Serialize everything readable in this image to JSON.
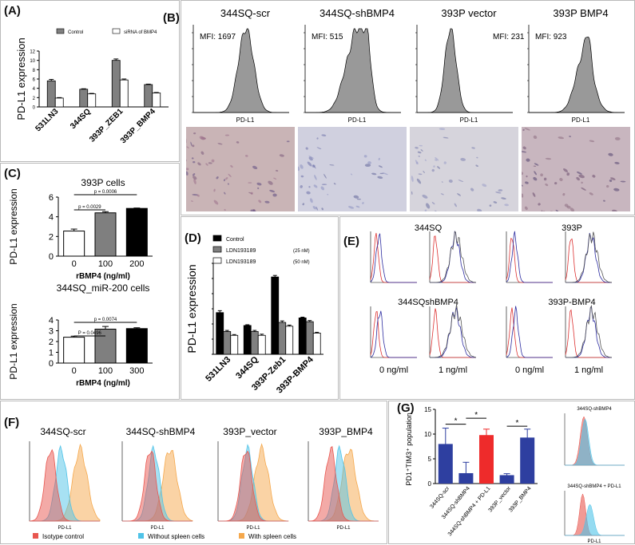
{
  "panels": {
    "A": {
      "label": "(A)",
      "ylabel": "PD-L1 expression",
      "chart_data": {
        "type": "bar",
        "categories": [
          "531LN3",
          "344SQ",
          "393P_ZEB1",
          "393P_BMP4"
        ],
        "series": [
          {
            "name": "Control",
            "values": [
              5.6,
              3.8,
              10.0,
              4.8
            ],
            "errors": [
              0.3,
              0.1,
              0.3,
              0.1
            ],
            "color": "#808080"
          },
          {
            "name": "siRNA of BMP4",
            "values": [
              1.9,
              2.8,
              5.8,
              3.0
            ],
            "errors": [
              0.1,
              0.1,
              0.2,
              0.1
            ],
            "color": "#ffffff"
          }
        ],
        "ylim": [
          0,
          12
        ],
        "yticks": [
          "0",
          "2",
          "4",
          "6",
          "8",
          "10",
          "12"
        ]
      }
    },
    "B": {
      "label": "(B)",
      "histograms": [
        {
          "title": "344SQ-scr",
          "mfi": "MFI: 1697",
          "xlabel": "PD-L1"
        },
        {
          "title": "344SQ-shBMP4",
          "mfi": "MFI: 515",
          "xlabel": "PD-L1"
        },
        {
          "title": "393P  vector",
          "mfi": "MFI: 231",
          "xlabel": "PD-L1"
        },
        {
          "title": "393P  BMP4",
          "mfi": "MFI: 923",
          "xlabel": "PD-L1"
        }
      ]
    },
    "C": {
      "label": "(C)",
      "charts": [
        {
          "title": "393P cells",
          "ylabel": "PD-L1 expression",
          "xlabel": "rBMP4 (ng/ml)",
          "annotations": [
            "p = 0.0006",
            "p = 0.0029"
          ],
          "chart_data": {
            "type": "bar",
            "categories": [
              "0",
              "100",
              "200"
            ],
            "values": [
              2.55,
              4.4,
              4.85
            ],
            "errors": [
              0.2,
              0.12,
              0.04
            ],
            "colors": [
              "#ffffff",
              "#7f7f7f",
              "#000000"
            ],
            "ylim": [
              0,
              6
            ],
            "yticks": [
              "0",
              "2",
              "4",
              "6"
            ]
          }
        },
        {
          "title": "344SQ_miR-200 cells",
          "ylabel": "PD-L1 expression",
          "xlabel": "rBMP4 (ng/ml)",
          "annotations": [
            "p = 0.0074",
            "P = 0.0496"
          ],
          "chart_data": {
            "type": "bar",
            "categories": [
              "0",
              "100",
              "300"
            ],
            "values": [
              2.4,
              3.15,
              3.2
            ],
            "errors": [
              0.1,
              0.25,
              0.08
            ],
            "colors": [
              "#ffffff",
              "#7f7f7f",
              "#000000"
            ],
            "ylim": [
              0,
              4
            ],
            "yticks": [
              "0",
              "1",
              "2",
              "3",
              "4"
            ]
          }
        }
      ]
    },
    "D": {
      "label": "(D)",
      "ylabel": "PD-L1 expression",
      "chart_data": {
        "type": "bar",
        "categories": [
          "531LN3",
          "344SQ",
          "393P-Zeb1",
          "393P-BMP4"
        ],
        "series": [
          {
            "name": "Control",
            "values": [
              5.5,
              3.8,
              10.2,
              4.8
            ],
            "errors": [
              0.25,
              0.1,
              0.2,
              0.1
            ],
            "color": "#000000"
          },
          {
            "name": "LDN193189",
            "values": [
              3.0,
              3.0,
              4.2,
              4.3
            ],
            "errors": [
              0.15,
              0.15,
              0.2,
              0.15
            ],
            "color": "#808080"
          },
          {
            "name": "LDN193189",
            "values": [
              2.5,
              2.5,
              3.7,
              2.8
            ],
            "errors": [
              0.1,
              0.15,
              0.15,
              0.1
            ],
            "color": "#ffffff"
          }
        ],
        "legend_conc": [
          "(25 nM)",
          "(50 nM)"
        ],
        "ylim": [
          0,
          12
        ]
      }
    },
    "E": {
      "label": "(E)",
      "titles": [
        "344SQ",
        "393P",
        "344SQshBMP4",
        "393P-BMP4"
      ],
      "xlabels": [
        "0 ng/ml",
        "1 ng/ml",
        "0 ng/ml",
        "1 ng/ml"
      ]
    },
    "F": {
      "label": "(F)",
      "titles": [
        "344SQ-scr",
        "344SQ-shBMP4",
        "393P_vector",
        "393P_BMP4"
      ],
      "xlabel": "PD-L1",
      "legend": [
        {
          "name": "Isotype control",
          "color": "#e8564f"
        },
        {
          "name": "Without spleen cells",
          "color": "#4fc3e8"
        },
        {
          "name": "With spleen cells",
          "color": "#f5a84c"
        }
      ]
    },
    "G": {
      "label": "(G)",
      "ylabel": "PD1⁺TIM3⁺ population",
      "chart_data": {
        "type": "bar",
        "categories": [
          "344SQ-scr",
          "344SQ-shBMP4",
          "344SQ-shBMP4 + PD-L1",
          "393P_vector",
          "393P_BMP4"
        ],
        "values": [
          8.0,
          2.1,
          9.8,
          1.7,
          9.3
        ],
        "errors": [
          3.2,
          2.2,
          1.2,
          0.3,
          1.7
        ],
        "colors": [
          "#2e3fa0",
          "#2e3fa0",
          "#ee2b2b",
          "#2e3fa0",
          "#2e3fa0"
        ],
        "ylim": [
          0,
          15
        ],
        "yticks": [
          "0",
          "5",
          "10",
          "15"
        ],
        "significance": [
          "*",
          "*",
          "*"
        ]
      },
      "insets": [
        "344SQ-shBMP4",
        "344SQ-shBMP4 + PD-L1"
      ],
      "inset_xlabel": "PD-L1"
    }
  }
}
